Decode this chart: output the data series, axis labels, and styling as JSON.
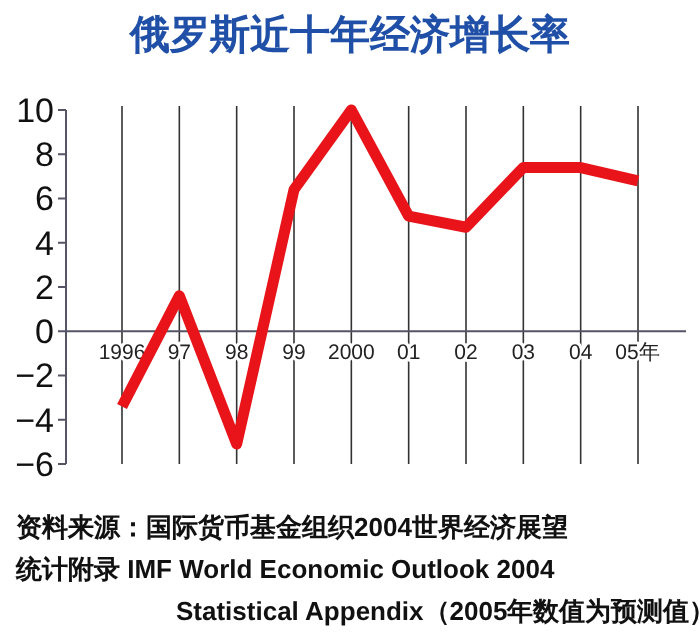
{
  "chart_data": {
    "type": "line",
    "title": "俄罗斯近十年经济增长率",
    "categories": [
      "1996",
      "97",
      "98",
      "99",
      "2000",
      "01",
      "02",
      "03",
      "04",
      "05年"
    ],
    "series": [
      {
        "color": "#e8141a",
        "values": [
          -3.4,
          1.6,
          -5.1,
          6.4,
          10,
          5.2,
          4.7,
          7.4,
          7.4,
          6.8
        ]
      }
    ],
    "ylim": [
      -6,
      10
    ],
    "yticks": [
      -6,
      -4,
      -2,
      0,
      2,
      4,
      6,
      8,
      10
    ],
    "grid": "x",
    "marker": "none",
    "line_style": "solid",
    "annotations": [
      "资料来源：国际货币基金组织2004世界经济展望",
      "统计附录 IMF World Economic Outlook 2004 Statistical Appendix（2005年数值为预测值）"
    ]
  }
}
